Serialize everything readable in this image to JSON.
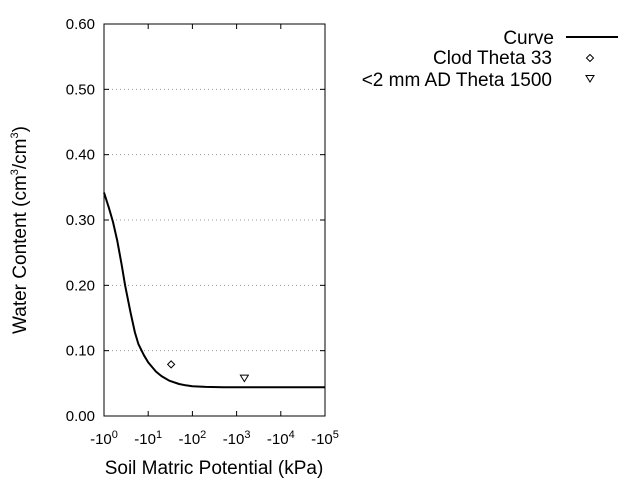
{
  "chart_data": {
    "type": "line",
    "xlabel": "Soil Matric Potential (kPa)",
    "ylabel": {
      "prefix": "Water Content (cm",
      "sup1": "3",
      "mid": "/cm",
      "sup2": "3",
      "suffix": ")"
    },
    "x_scale": "log",
    "xlim": [
      1,
      100000
    ],
    "ylim": [
      0,
      0.6
    ],
    "grid": "horizontal-dotted",
    "legend_position": "top-right",
    "x_ticks": [
      {
        "value": 1,
        "base": "-10",
        "exp": "0"
      },
      {
        "value": 10,
        "base": "-10",
        "exp": "1"
      },
      {
        "value": 100,
        "base": "-10",
        "exp": "2"
      },
      {
        "value": 1000,
        "base": "-10",
        "exp": "3"
      },
      {
        "value": 10000,
        "base": "-10",
        "exp": "4"
      },
      {
        "value": 100000,
        "base": "-10",
        "exp": "5"
      }
    ],
    "y_ticks": [
      {
        "value": 0.0,
        "label": "0.00"
      },
      {
        "value": 0.1,
        "label": "0.10"
      },
      {
        "value": 0.2,
        "label": "0.20"
      },
      {
        "value": 0.3,
        "label": "0.30"
      },
      {
        "value": 0.4,
        "label": "0.40"
      },
      {
        "value": 0.5,
        "label": "0.50"
      },
      {
        "value": 0.6,
        "label": "0.60"
      }
    ],
    "series": [
      {
        "name": "Curve",
        "style": "line",
        "color": "#000000",
        "x": [
          1,
          1.3,
          1.6,
          2,
          2.5,
          3,
          4,
          5,
          6,
          8,
          10,
          15,
          20,
          30,
          50,
          70,
          100,
          200,
          500,
          1000,
          10000,
          100000
        ],
        "y": [
          0.342,
          0.318,
          0.297,
          0.268,
          0.232,
          0.2,
          0.158,
          0.128,
          0.11,
          0.093,
          0.082,
          0.068,
          0.061,
          0.054,
          0.049,
          0.047,
          0.0455,
          0.0445,
          0.044,
          0.044,
          0.044,
          0.044
        ]
      },
      {
        "name": "Clod Theta 33",
        "style": "marker",
        "marker": "diamond",
        "x": [
          33
        ],
        "y": [
          0.079
        ]
      },
      {
        "name": "<2 mm AD Theta 1500",
        "style": "marker",
        "marker": "triangle-down",
        "x": [
          1500
        ],
        "y": [
          0.058
        ]
      }
    ]
  }
}
